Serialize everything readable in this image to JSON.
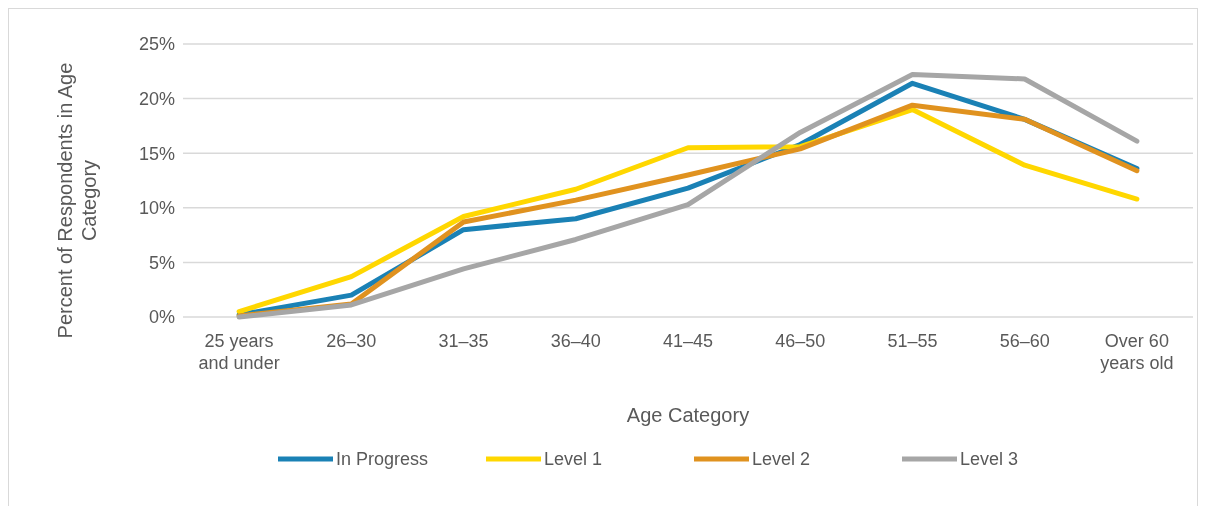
{
  "chart_data": {
    "type": "line",
    "xlabel": "Age Category",
    "ylabel": "Percent of Respondents in Age Category",
    "categories": [
      "25 years and under",
      "26–30",
      "31–35",
      "36–40",
      "41–45",
      "46–50",
      "51–55",
      "56–60",
      "Over 60 years old"
    ],
    "series": [
      {
        "name": "In Progress",
        "color": "#1a81b5",
        "values": [
          0.2,
          2.0,
          8.0,
          9.0,
          11.8,
          15.8,
          21.4,
          18.1,
          13.6
        ]
      },
      {
        "name": "Level 1",
        "color": "#ffd700",
        "values": [
          0.5,
          3.7,
          9.2,
          11.7,
          15.5,
          15.6,
          19.0,
          13.9,
          10.8
        ]
      },
      {
        "name": "Level 2",
        "color": "#e0921f",
        "values": [
          0.1,
          1.2,
          8.7,
          10.7,
          13.0,
          15.4,
          19.4,
          18.1,
          13.4
        ]
      },
      {
        "name": "Level 3",
        "color": "#a6a6a6",
        "values": [
          0.0,
          1.1,
          4.4,
          7.1,
          10.3,
          16.9,
          22.2,
          21.8,
          16.1
        ]
      }
    ],
    "ylim": [
      0,
      25
    ],
    "yticks": [
      {
        "value": 0,
        "label": "0%"
      },
      {
        "value": 5,
        "label": "5%"
      },
      {
        "value": 10,
        "label": "10%"
      },
      {
        "value": 15,
        "label": "15%"
      },
      {
        "value": 20,
        "label": "20%"
      },
      {
        "value": 25,
        "label": "25%"
      }
    ],
    "grid": "y",
    "legend": "bottom",
    "marker": "none",
    "line_style": "solid"
  }
}
